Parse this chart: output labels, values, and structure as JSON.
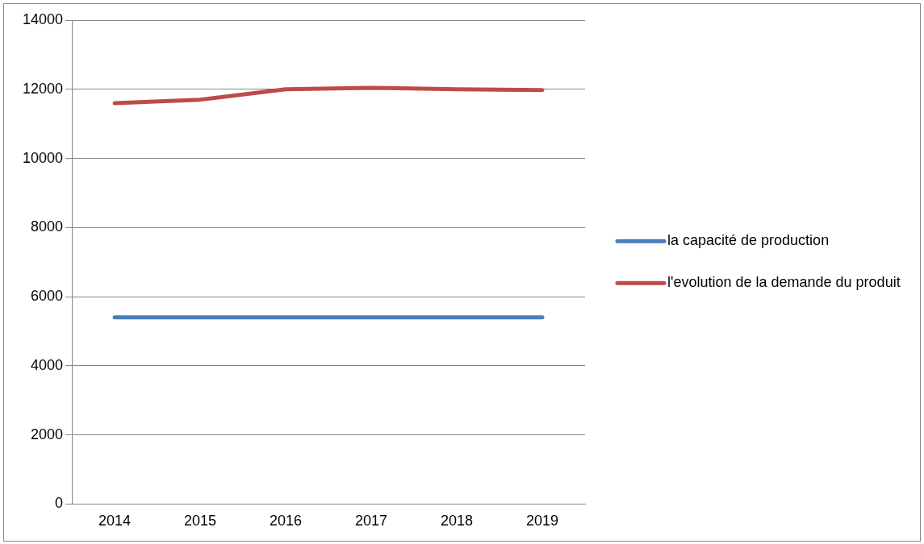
{
  "chart_data": {
    "type": "line",
    "categories": [
      "2014",
      "2015",
      "2016",
      "2017",
      "2018",
      "2019"
    ],
    "series": [
      {
        "name": "la capacité de production",
        "color": "#4a7ebb",
        "values": [
          5400,
          5400,
          5400,
          5400,
          5400,
          5400
        ]
      },
      {
        "name": "l'evolution de la demande du produit",
        "color": "#be4b48",
        "values": [
          11600,
          11700,
          12000,
          12040,
          12000,
          11980
        ]
      }
    ],
    "ylim": [
      0,
      14000
    ],
    "yticks": [
      0,
      2000,
      4000,
      6000,
      8000,
      10000,
      12000,
      14000
    ],
    "grid": "y",
    "legend": "right",
    "marker": "none",
    "line_style": "solid"
  }
}
